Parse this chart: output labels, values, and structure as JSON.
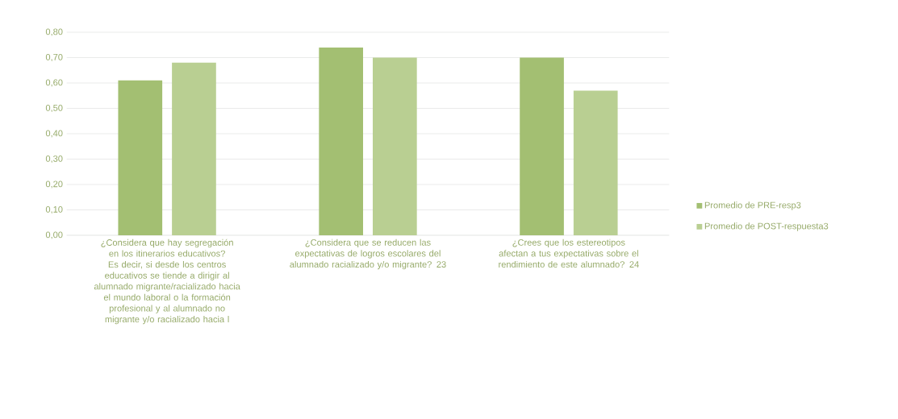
{
  "chart_data": {
    "type": "bar",
    "categories": [
      "¿Considera que hay segregación en los itinerarios educativos? Es decir, si desde los centros educativos se tiende a dirigir al alumnado migrante/racializado hacia el mundo laboral o la formación profesional y al alumnado no migrante y/o racializado hacia l",
      "¿Considera que se reducen las expectativas de logros escolares del alumnado racializado y/o migrante? 23",
      "¿Crees que los estereotipos afectan a tus expectativas sobre el rendimiento de este alumnado? 24"
    ],
    "series": [
      {
        "name": "Promedio de PRE-resp3",
        "color": "#a3bf72",
        "values": [
          0.61,
          0.74,
          0.7
        ]
      },
      {
        "name": "Promedio de POST-respuesta3",
        "color": "#b9cf92",
        "values": [
          0.68,
          0.7,
          0.57
        ]
      }
    ],
    "ylim": [
      0,
      0.8
    ],
    "yticks": [
      {
        "value": 0,
        "label": "0,00"
      },
      {
        "value": 0.1,
        "label": "0,10"
      },
      {
        "value": 0.2,
        "label": "0,20"
      },
      {
        "value": 0.3,
        "label": "0,30"
      },
      {
        "value": 0.4,
        "label": "0,40"
      },
      {
        "value": 0.5,
        "label": "0,50"
      },
      {
        "value": 0.6,
        "label": "0,60"
      },
      {
        "value": 0.7,
        "label": "0,70"
      },
      {
        "value": 0.8,
        "label": "0,80"
      }
    ],
    "grid": "y",
    "legend": "right"
  }
}
